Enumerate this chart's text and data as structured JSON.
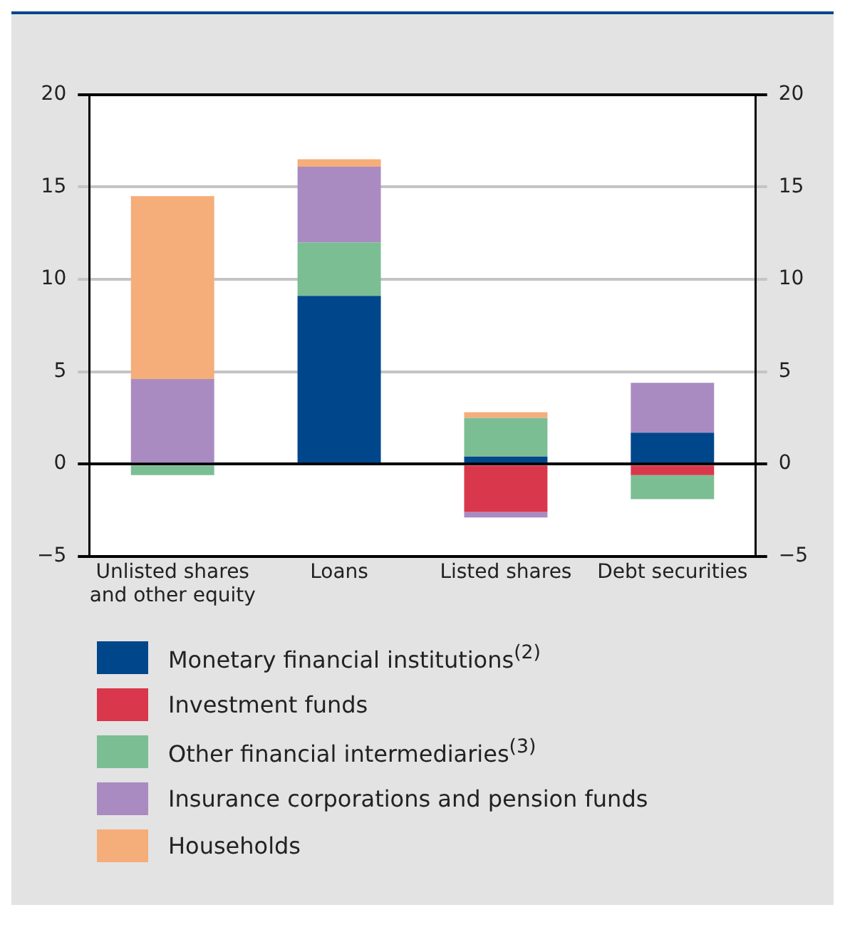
{
  "chart_data": {
    "type": "bar",
    "stacked": true,
    "categories": [
      "Unlisted shares and other equity",
      "Loans",
      "Listed shares",
      "Debt securities"
    ],
    "series": [
      {
        "name": "Monetary financial institutions$^{(2)}$",
        "color": "#00468b",
        "values": [
          null,
          9.1,
          0.4,
          1.7
        ]
      },
      {
        "name": "Investment funds",
        "color": "#d9374b",
        "values": [
          null,
          null,
          -2.6,
          -0.6
        ]
      },
      {
        "name": "Other financial intermediaries$^{(3)}$",
        "color": "#7bbe94",
        "values": [
          -0.6,
          2.9,
          2.1,
          -1.3
        ]
      },
      {
        "name": "Insurance corporations and pension funds",
        "color": "#a98bc2",
        "values": [
          4.6,
          4.1,
          -0.3,
          2.7
        ]
      },
      {
        "name": "Households",
        "color": "#f5ad7a",
        "values": [
          9.9,
          0.4,
          0.3,
          null
        ]
      }
    ],
    "ylim": [
      -5,
      20
    ],
    "yticks": [
      {
        "value": -5,
        "label": "−5"
      },
      0,
      5,
      10,
      15,
      20
    ],
    "y2lim": [
      -5,
      20
    ],
    "y2ticks": [
      {
        "value": -5,
        "label": "−5"
      },
      0,
      5,
      10,
      15,
      20
    ],
    "grid": "y",
    "legend": "bottom"
  }
}
